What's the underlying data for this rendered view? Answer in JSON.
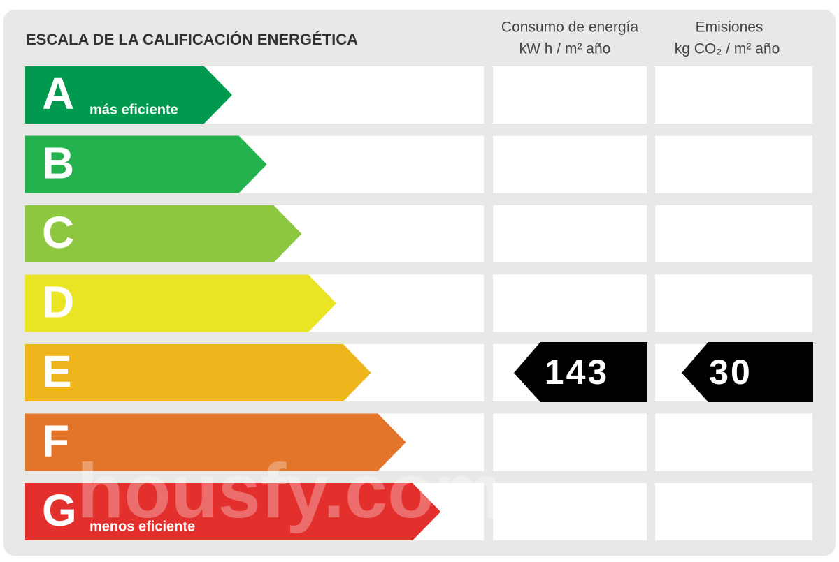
{
  "title": "ESCALA DE LA CALIFICACIÓN ENERGÉTICA",
  "columns": [
    {
      "title": "Consumo de energía",
      "unit": "kW h  / m² año"
    },
    {
      "title": "Emisiones",
      "unit": "kg CO₂  / m² año"
    }
  ],
  "rows": [
    {
      "letter": "A",
      "label": "más eficiente",
      "color": "#00994e"
    },
    {
      "letter": "B",
      "color": "#22b14c"
    },
    {
      "letter": "C",
      "color": "#8dc63f"
    },
    {
      "letter": "D",
      "color": "#e9e524"
    },
    {
      "letter": "E",
      "color": "#efb51d"
    },
    {
      "letter": "F",
      "color": "#e3752a"
    },
    {
      "letter": "G",
      "label": "menos eficiente",
      "color": "#e4302d"
    }
  ],
  "ratings": [
    {
      "letter": "E",
      "value": 143
    },
    {
      "letter": "E",
      "value": 30
    }
  ],
  "watermark": "housfy.com"
}
